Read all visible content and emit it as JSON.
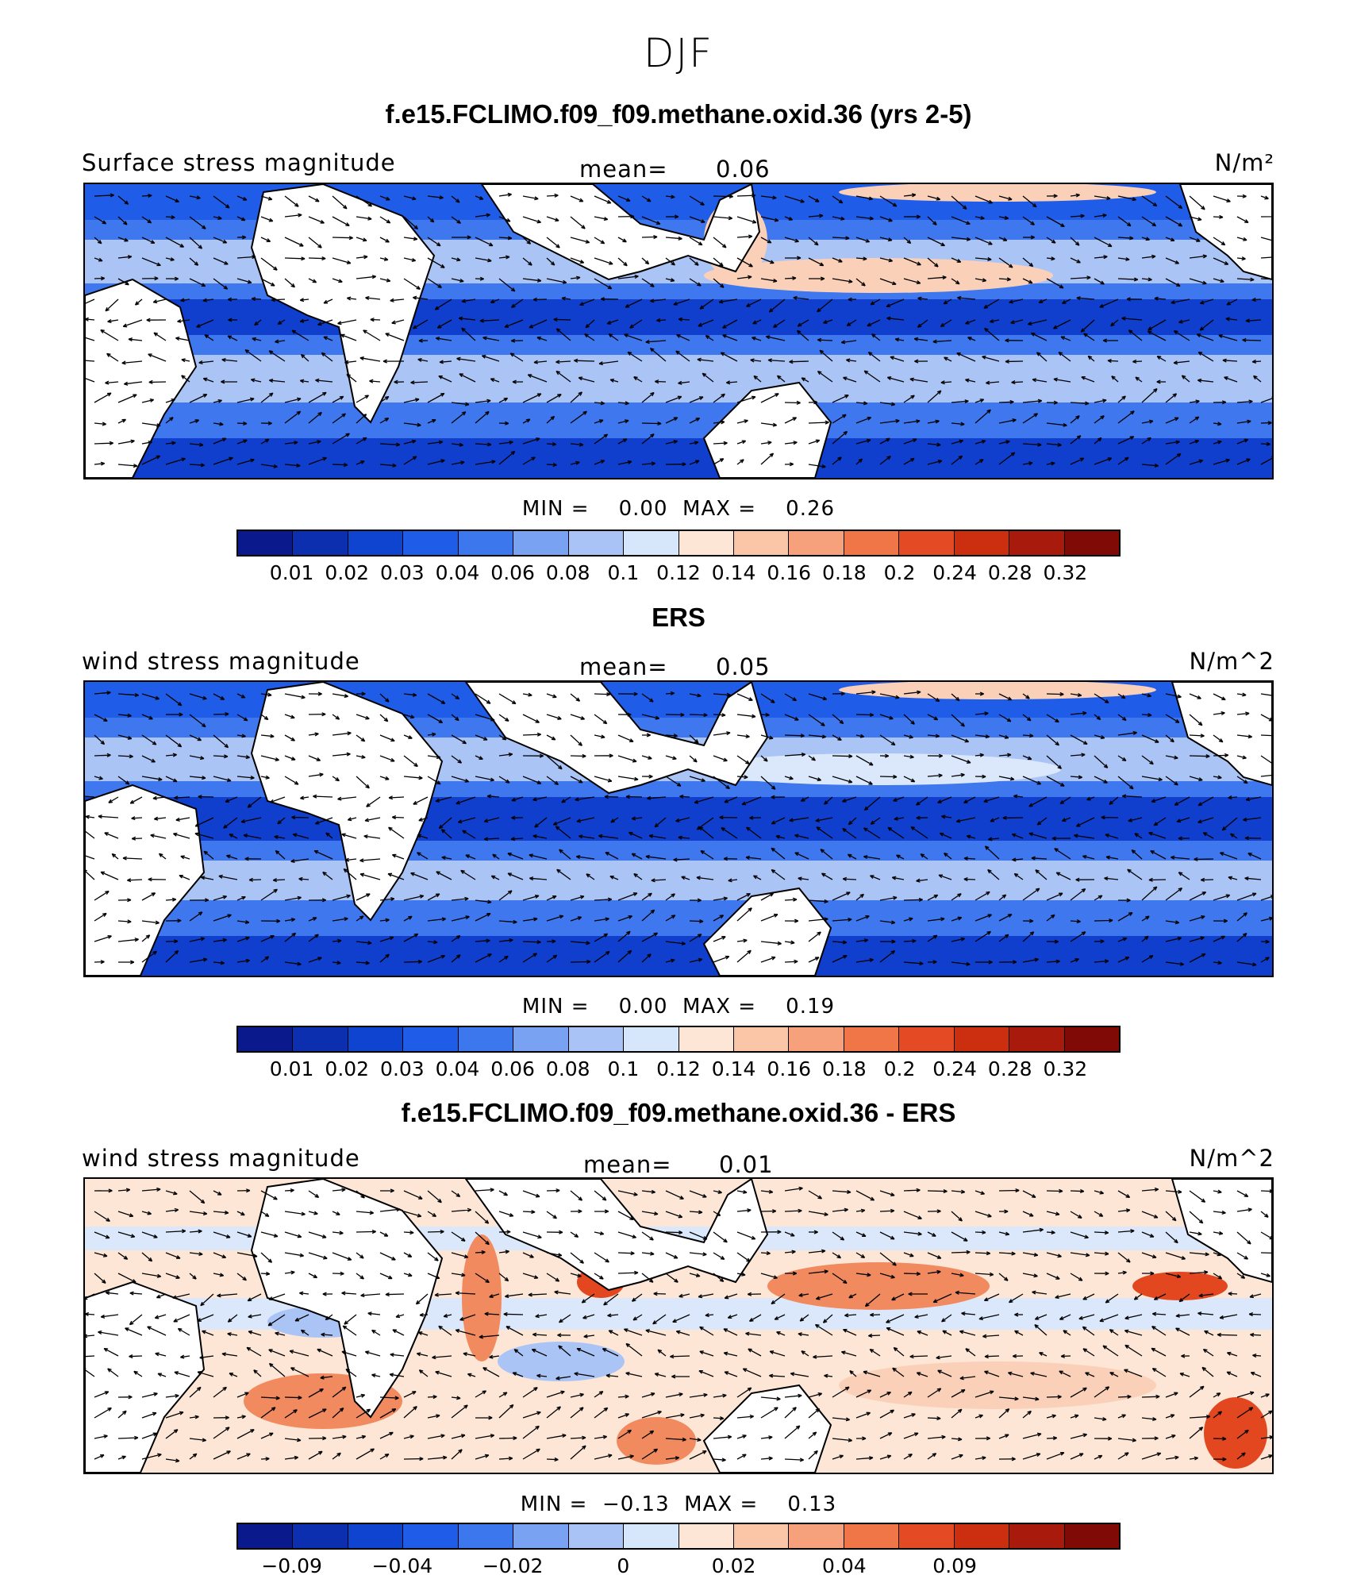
{
  "figure_title": "DJF",
  "panels": [
    {
      "title": "f.e15.FCLIMO.f09_f09.methane.oxid.36 (yrs 2-5)",
      "left_label": "Surface stress magnitude",
      "mean_label": "mean=",
      "mean_value": "0.06",
      "unit": "N/m²",
      "min_label": "MIN =",
      "min_value": "0.00",
      "max_label": "MAX =",
      "max_value": "0.26",
      "colorbar_labels": [
        "0.01",
        "0.02",
        "0.03",
        "0.04",
        "0.06",
        "0.08",
        "0.1",
        "0.12",
        "0.14",
        "0.16",
        "0.18",
        "0.2",
        "0.24",
        "0.28",
        "0.32"
      ]
    },
    {
      "title": "ERS",
      "left_label": "wind stress magnitude",
      "mean_label": "mean=",
      "mean_value": "0.05",
      "unit": "N/m^2",
      "min_label": "MIN =",
      "min_value": "0.00",
      "max_label": "MAX =",
      "max_value": "0.19",
      "colorbar_labels": [
        "0.01",
        "0.02",
        "0.03",
        "0.04",
        "0.06",
        "0.08",
        "0.1",
        "0.12",
        "0.14",
        "0.16",
        "0.18",
        "0.2",
        "0.24",
        "0.28",
        "0.32"
      ]
    },
    {
      "title": "f.e15.FCLIMO.f09_f09.methane.oxid.36 - ERS",
      "left_label": "wind stress magnitude",
      "mean_label": "mean=",
      "mean_value": "0.01",
      "unit": "N/m^2",
      "min_label": "MIN =",
      "min_value": "−0.13",
      "max_label": "MAX =",
      "max_value": "0.13",
      "colorbar_labels": [
        "−0.09",
        "−0.04",
        "−0.02",
        "0",
        "0.02",
        "0.04",
        "0.09"
      ]
    }
  ],
  "colorbar_colors": [
    "#0a1a8c",
    "#0c2fb0",
    "#0f44d0",
    "#1f5ce8",
    "#3d77ee",
    "#7aa2f2",
    "#a9c3f6",
    "#d6e6fb",
    "#fde6d6",
    "#fbc5a8",
    "#f7a07c",
    "#f07648",
    "#e44b24",
    "#cc2e10",
    "#a81a0c",
    "#800a05"
  ],
  "map_colors": {
    "ocean_deep": "#0f3fcc",
    "ocean_mid": "#3f78ee",
    "ocean_light": "#aac4f6",
    "ocean_pale": "#dbe8fb",
    "land": "#ffffff",
    "warm_light": "#fbd0b8",
    "warm_mid": "#f28a60",
    "warm_strong": "#e2471f"
  }
}
